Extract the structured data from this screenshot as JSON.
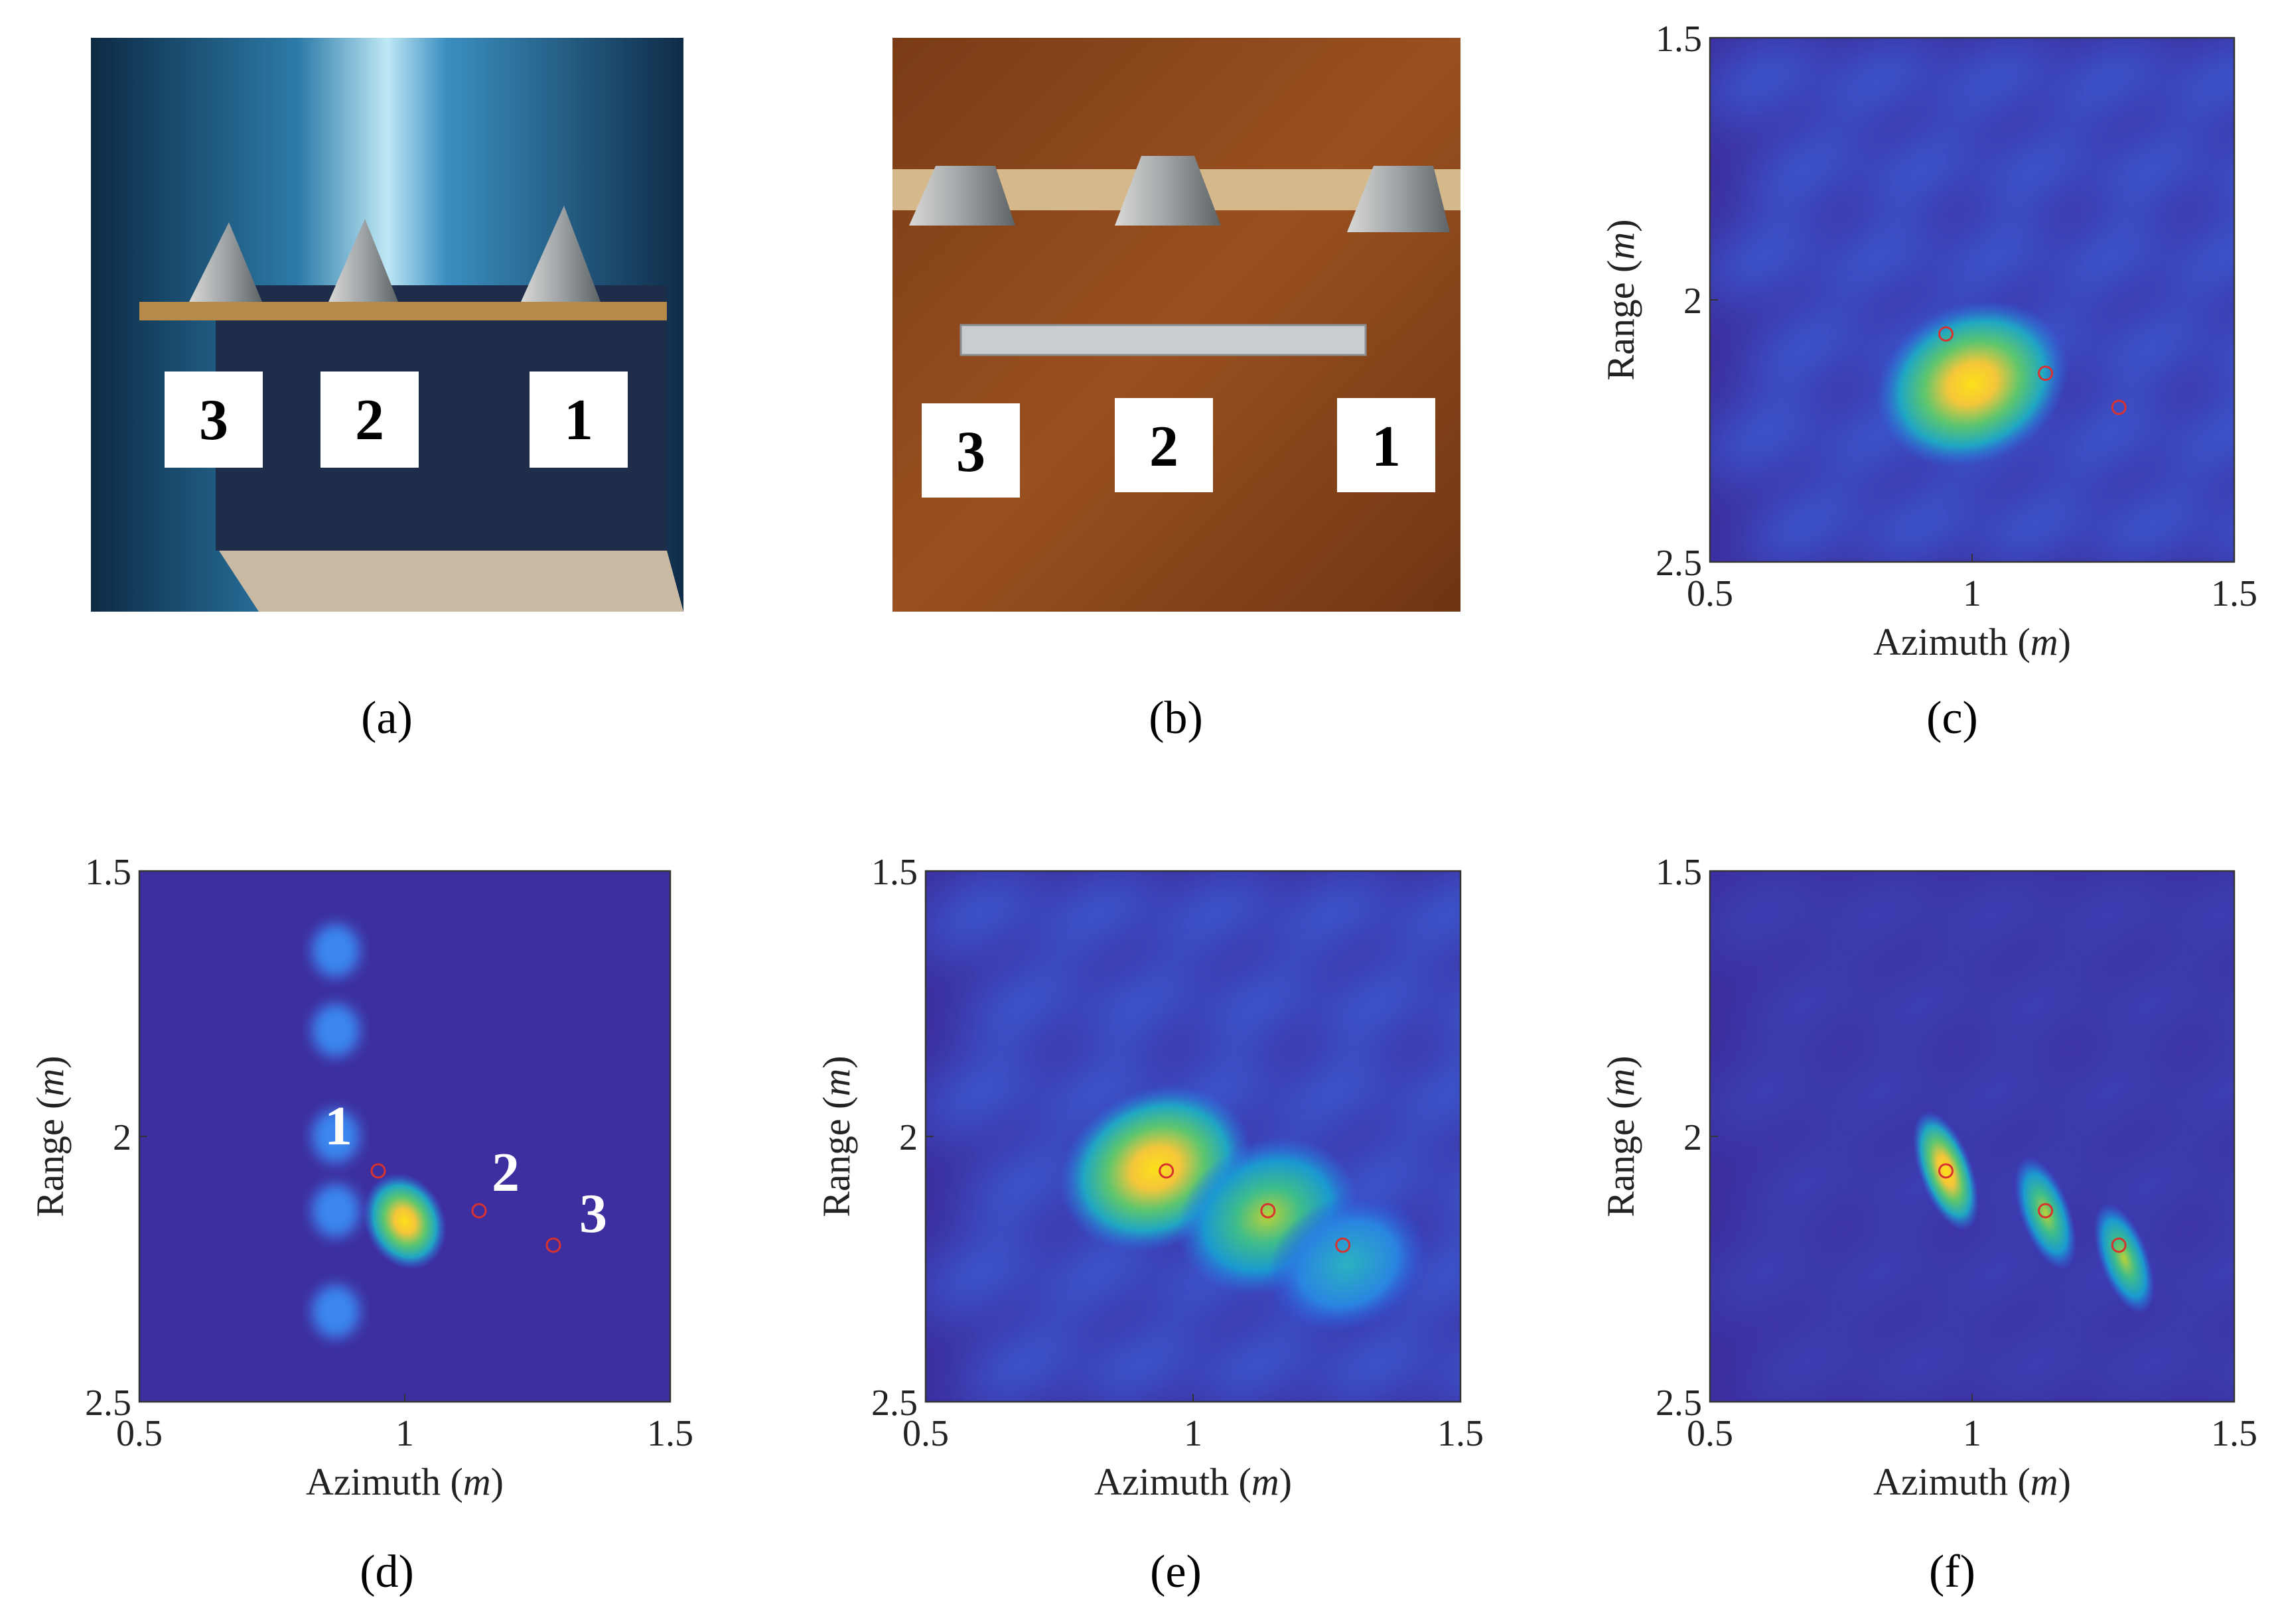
{
  "captions": [
    "(a)",
    "(b)",
    "(c)",
    "(d)",
    "(e)",
    "(f)"
  ],
  "photos": [
    {
      "labels": [
        "3",
        "2",
        "1"
      ]
    },
    {
      "labels": [
        "3",
        "2",
        "1"
      ]
    }
  ],
  "chart_data": [
    {
      "type": "heatmap",
      "caption": "(c)",
      "xlabel": "Azimuth",
      "xunit": "m",
      "ylabel": "Range",
      "yunit": "m",
      "xlim": [
        0.5,
        1.5
      ],
      "ylim": [
        1.5,
        2.5
      ],
      "y_reversed": true,
      "xticks": [
        "0.5",
        "1",
        "1.5"
      ],
      "yticks": [
        "1.5",
        "2",
        "2.5"
      ],
      "targets": [
        {
          "x": 0.95,
          "y": 2.065
        },
        {
          "x": 1.14,
          "y": 2.14
        },
        {
          "x": 1.28,
          "y": 2.205
        }
      ],
      "peaks": [
        {
          "x": 1.0,
          "y": 2.16,
          "intensity": 1.0
        }
      ],
      "target_labels": []
    },
    {
      "type": "heatmap",
      "caption": "(d)",
      "xlabel": "Azimuth",
      "xunit": "m",
      "ylabel": "Range",
      "yunit": "m",
      "xlim": [
        0.5,
        1.5
      ],
      "ylim": [
        1.5,
        2.5
      ],
      "y_reversed": true,
      "xticks": [
        "0.5",
        "1",
        "1.5"
      ],
      "yticks": [
        "1.5",
        "2",
        "2.5"
      ],
      "targets": [
        {
          "x": 0.95,
          "y": 2.065
        },
        {
          "x": 1.14,
          "y": 2.14
        },
        {
          "x": 1.28,
          "y": 2.205
        }
      ],
      "peaks": [
        {
          "x": 1.0,
          "y": 2.16,
          "intensity": 1.0
        }
      ],
      "target_labels": [
        "1",
        "2",
        "3"
      ]
    },
    {
      "type": "heatmap",
      "caption": "(e)",
      "xlabel": "Azimuth",
      "xunit": "m",
      "ylabel": "Range",
      "yunit": "m",
      "xlim": [
        0.5,
        1.5
      ],
      "ylim": [
        1.5,
        2.5
      ],
      "y_reversed": true,
      "xticks": [
        "0.5",
        "1",
        "1.5"
      ],
      "yticks": [
        "1.5",
        "2",
        "2.5"
      ],
      "targets": [
        {
          "x": 0.95,
          "y": 2.065
        },
        {
          "x": 1.14,
          "y": 2.14
        },
        {
          "x": 1.28,
          "y": 2.205
        }
      ],
      "peaks": [
        {
          "x": 0.93,
          "y": 2.06,
          "intensity": 1.0
        },
        {
          "x": 1.14,
          "y": 2.15,
          "intensity": 0.85
        },
        {
          "x": 1.29,
          "y": 2.24,
          "intensity": 0.6
        }
      ],
      "target_labels": []
    },
    {
      "type": "heatmap",
      "caption": "(f)",
      "xlabel": "Azimuth",
      "xunit": "m",
      "ylabel": "Range",
      "yunit": "m",
      "xlim": [
        0.5,
        1.5
      ],
      "ylim": [
        1.5,
        2.5
      ],
      "y_reversed": true,
      "xticks": [
        "0.5",
        "1",
        "1.5"
      ],
      "yticks": [
        "1.5",
        "2",
        "2.5"
      ],
      "targets": [
        {
          "x": 0.95,
          "y": 2.065
        },
        {
          "x": 1.14,
          "y": 2.14
        },
        {
          "x": 1.28,
          "y": 2.205
        }
      ],
      "peaks": [
        {
          "x": 0.95,
          "y": 2.065,
          "intensity": 1.0
        },
        {
          "x": 1.14,
          "y": 2.145,
          "intensity": 0.85
        },
        {
          "x": 1.29,
          "y": 2.23,
          "intensity": 0.8
        }
      ],
      "target_labels": []
    }
  ]
}
